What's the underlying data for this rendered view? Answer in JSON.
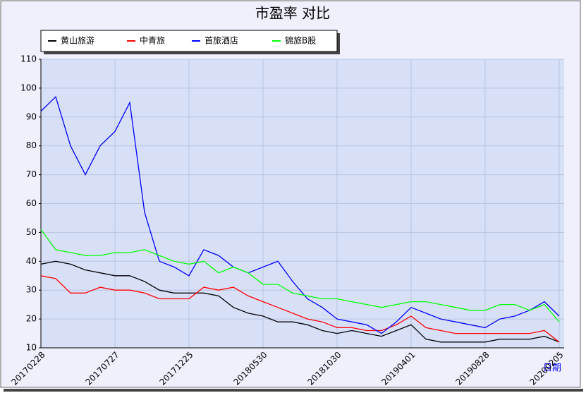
{
  "chart_data": {
    "type": "line",
    "title": "市盈率 对比",
    "x_label": "日期",
    "categories": [
      "20170228",
      null,
      null,
      null,
      null,
      "20170727",
      null,
      null,
      null,
      null,
      "20171225",
      null,
      null,
      null,
      null,
      "20180530",
      null,
      null,
      null,
      null,
      "20181030",
      null,
      null,
      null,
      null,
      "20190401",
      null,
      null,
      null,
      null,
      "20190828",
      null,
      null,
      null,
      null,
      "20200205"
    ],
    "series": [
      {
        "name": "黄山旅游",
        "color": "#000000",
        "values": [
          39,
          40,
          39,
          37,
          36,
          35,
          35,
          33,
          30,
          29,
          29,
          29,
          28,
          24,
          22,
          21,
          19,
          19,
          18,
          16,
          15,
          16,
          15,
          14,
          16,
          18,
          13,
          12,
          12,
          12,
          12,
          13,
          13,
          13,
          14,
          12
        ]
      },
      {
        "name": "中青旅",
        "color": "#ff0000",
        "values": [
          35,
          34,
          29,
          29,
          31,
          30,
          30,
          29,
          27,
          27,
          27,
          31,
          30,
          31,
          28,
          26,
          24,
          22,
          20,
          19,
          17,
          17,
          16,
          16,
          18,
          21,
          17,
          16,
          15,
          15,
          15,
          15,
          15,
          15,
          16,
          12
        ]
      },
      {
        "name": "首旅酒店",
        "color": "#0000ff",
        "values": [
          92,
          97,
          80,
          70,
          80,
          85,
          95,
          57,
          40,
          38,
          35,
          44,
          42,
          38,
          36,
          38,
          40,
          33,
          27,
          24,
          20,
          19,
          18,
          15,
          19,
          24,
          22,
          20,
          19,
          18,
          17,
          20,
          21,
          23,
          26,
          21
        ]
      },
      {
        "name": "锦旅B股",
        "color": "#00ff00",
        "values": [
          51,
          44,
          43,
          42,
          42,
          43,
          43,
          44,
          42,
          40,
          39,
          40,
          36,
          38,
          36,
          32,
          32,
          29,
          28,
          27,
          27,
          26,
          25,
          24,
          25,
          26,
          26,
          25,
          24,
          23,
          23,
          25,
          25,
          23,
          25,
          19
        ]
      }
    ],
    "ylim": [
      10,
      110
    ],
    "yticks": [
      10,
      20,
      30,
      40,
      50,
      60,
      70,
      80,
      90,
      100,
      110
    ],
    "grid": true
  }
}
